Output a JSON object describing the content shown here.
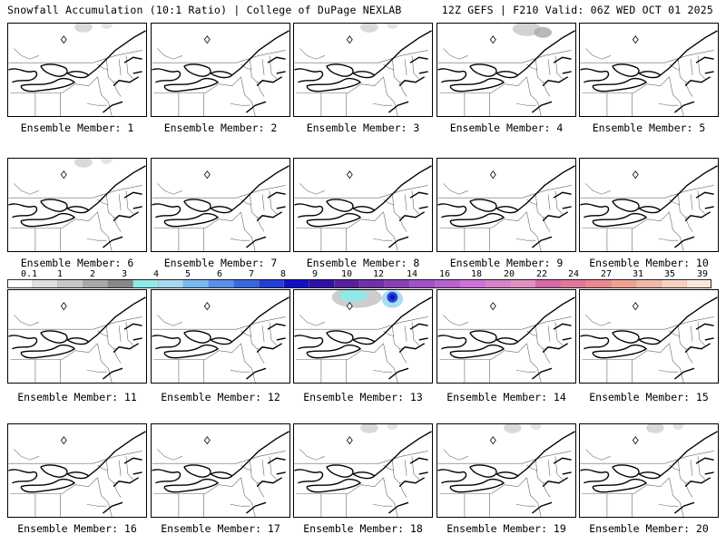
{
  "header": {
    "left": "Snowfall Accumulation (10:1 Ratio) | College of DuPage NEXLAB",
    "right": "12Z GEFS | F210 Valid: 06Z WED OCT 01 2025"
  },
  "panels": [
    {
      "label": "Ensemble Member: 1",
      "snow": "trace"
    },
    {
      "label": "Ensemble Member: 2",
      "snow": "none"
    },
    {
      "label": "Ensemble Member: 3",
      "snow": "trace"
    },
    {
      "label": "Ensemble Member: 4",
      "snow": "light"
    },
    {
      "label": "Ensemble Member: 5",
      "snow": "none"
    },
    {
      "label": "Ensemble Member: 6",
      "snow": "trace"
    },
    {
      "label": "Ensemble Member: 7",
      "snow": "none"
    },
    {
      "label": "Ensemble Member: 8",
      "snow": "none"
    },
    {
      "label": "Ensemble Member: 9",
      "snow": "none"
    },
    {
      "label": "Ensemble Member: 10",
      "snow": "none"
    },
    {
      "label": "Ensemble Member: 11",
      "snow": "none"
    },
    {
      "label": "Ensemble Member: 12",
      "snow": "none"
    },
    {
      "label": "Ensemble Member: 13",
      "snow": "moderate"
    },
    {
      "label": "Ensemble Member: 14",
      "snow": "none"
    },
    {
      "label": "Ensemble Member: 15",
      "snow": "none"
    },
    {
      "label": "Ensemble Member: 16",
      "snow": "none"
    },
    {
      "label": "Ensemble Member: 17",
      "snow": "none"
    },
    {
      "label": "Ensemble Member: 18",
      "snow": "trace"
    },
    {
      "label": "Ensemble Member: 19",
      "snow": "trace"
    },
    {
      "label": "Ensemble Member: 20",
      "snow": "trace"
    }
  ],
  "colorbar": {
    "labels": [
      "0.1",
      "1",
      "2",
      "3",
      "4",
      "5",
      "6",
      "7",
      "8",
      "9",
      "10",
      "12",
      "14",
      "16",
      "18",
      "20",
      "22",
      "24",
      "27",
      "31",
      "35",
      "39"
    ],
    "colors": [
      "#ffffff",
      "#e0e0e0",
      "#c8c8c8",
      "#a8a8a8",
      "#888888",
      "#8ee8e8",
      "#a8d8f0",
      "#78b8f0",
      "#5890e8",
      "#3868e0",
      "#2040d8",
      "#1010c8",
      "#3010a8",
      "#5820a0",
      "#7030a8",
      "#8840b8",
      "#a050c8",
      "#b860d0",
      "#d070d8",
      "#d880c8",
      "#e090c0",
      "#d868a8",
      "#e07898",
      "#e88890",
      "#f0a090",
      "#f0b8a8",
      "#f8d0c0",
      "#fce8d8"
    ]
  }
}
